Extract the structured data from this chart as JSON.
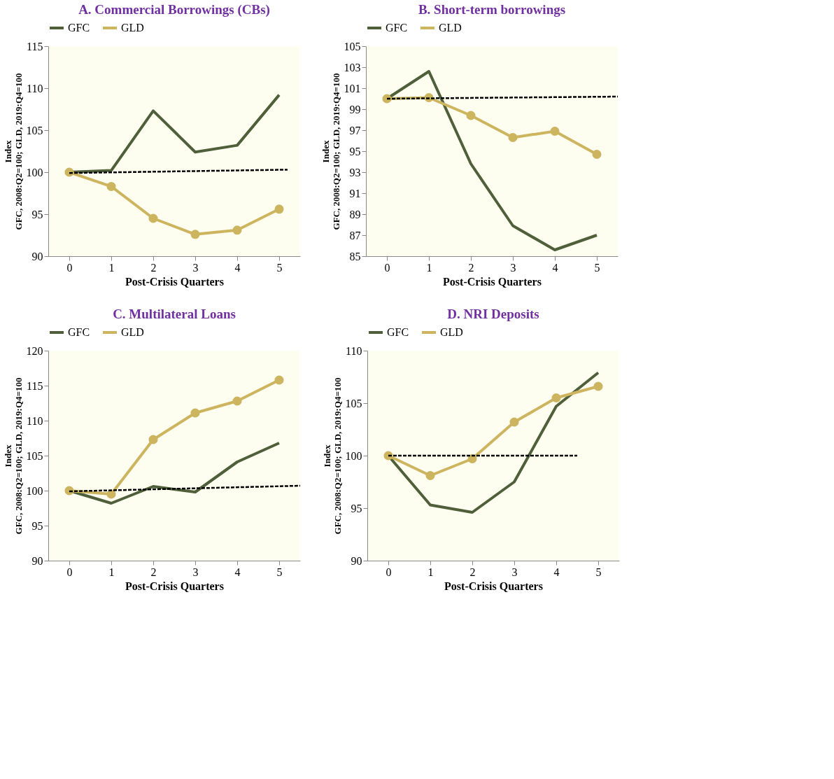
{
  "chart_data": [
    {
      "type": "line",
      "title": "A.  Commercial Borrowings (CBs)",
      "xlabel": "Post-Crisis Quarters",
      "ylabel": "Index\nGFC, 2008:Q2=100; GLD, 2019:Q4=100",
      "x": [
        0,
        1,
        2,
        3,
        4,
        5
      ],
      "xlim": [
        -0.5,
        5.5
      ],
      "xticks": [
        0,
        1,
        2,
        3,
        4,
        5
      ],
      "ylim": [
        90,
        115
      ],
      "yticks": [
        90,
        95,
        100,
        105,
        110,
        115
      ],
      "grid": false,
      "legend": "top",
      "marker": "none",
      "line_style": "solid",
      "series": [
        {
          "name": "GFC",
          "color": "#4f5f3a",
          "values": [
            100,
            100.2,
            107.3,
            102.4,
            103.2,
            109.2
          ]
        },
        {
          "name": "GLD",
          "color": "#cdb560",
          "marker": "circle",
          "values": [
            100,
            98.3,
            94.5,
            92.6,
            93.1,
            95.6
          ]
        },
        {
          "color": "#000000",
          "line_style": "dashed",
          "x": [
            0,
            5.2
          ],
          "values": [
            99.9,
            100.3
          ]
        }
      ]
    },
    {
      "type": "line",
      "title": "B.  Short-term borrowings",
      "xlabel": "Post-Crisis Quarters",
      "ylabel": "Index\nGFC, 2008:Q2=100; GLD, 2019:Q4=100",
      "x": [
        0,
        1,
        2,
        3,
        4,
        5
      ],
      "xlim": [
        -0.5,
        5.5
      ],
      "xticks": [
        0,
        1,
        2,
        3,
        4,
        5
      ],
      "ylim": [
        85,
        105
      ],
      "yticks": [
        85,
        87,
        89,
        91,
        93,
        95,
        97,
        99,
        101,
        103,
        105
      ],
      "grid": false,
      "legend": "top",
      "marker": "none",
      "line_style": "solid",
      "series": [
        {
          "name": "GFC",
          "color": "#4f5f3a",
          "values": [
            100,
            102.6,
            93.8,
            87.9,
            85.6,
            87.0
          ]
        },
        {
          "name": "GLD",
          "color": "#cdb560",
          "marker": "circle",
          "values": [
            100,
            100.1,
            98.4,
            96.3,
            96.9,
            94.7
          ]
        },
        {
          "color": "#000000",
          "line_style": "dashed",
          "x": [
            0,
            5.5
          ],
          "values": [
            100,
            100.2
          ]
        }
      ]
    },
    {
      "type": "line",
      "title": "C. Multilateral Loans",
      "xlabel": "Post-Crisis Quarters",
      "ylabel": "Index\nGFC, 2008:Q2=100; GLD, 2019:Q4=100",
      "x": [
        0,
        1,
        2,
        3,
        4,
        5
      ],
      "xlim": [
        -0.5,
        5.5
      ],
      "xticks": [
        0,
        1,
        2,
        3,
        4,
        5
      ],
      "ylim": [
        90,
        120
      ],
      "yticks": [
        90,
        95,
        100,
        105,
        110,
        115,
        120
      ],
      "grid": false,
      "legend": "top",
      "marker": "none",
      "line_style": "solid",
      "series": [
        {
          "name": "GFC",
          "color": "#4f5f3a",
          "values": [
            100,
            98.2,
            100.6,
            99.8,
            104.1,
            106.8
          ]
        },
        {
          "name": "GLD",
          "color": "#cdb560",
          "marker": "circle",
          "values": [
            100,
            99.5,
            107.3,
            111.1,
            112.8,
            115.8
          ]
        },
        {
          "color": "#000000",
          "line_style": "dashed",
          "x": [
            0,
            5.5
          ],
          "values": [
            99.9,
            100.7
          ]
        }
      ]
    },
    {
      "type": "line",
      "title": "D. NRI Deposits",
      "xlabel": "Post-Crisis Quarters",
      "ylabel": "Index\nGFC, 2008:Q2=100; GLD, 2019:Q4=100",
      "x": [
        0,
        1,
        2,
        3,
        4,
        5
      ],
      "xlim": [
        -0.5,
        5.5
      ],
      "xticks": [
        0,
        1,
        2,
        3,
        4,
        5
      ],
      "ylim": [
        90,
        110
      ],
      "yticks": [
        90,
        95,
        100,
        105,
        110
      ],
      "grid": false,
      "legend": "top",
      "marker": "none",
      "line_style": "solid",
      "series": [
        {
          "name": "GFC",
          "color": "#4f5f3a",
          "values": [
            100,
            95.3,
            94.6,
            97.5,
            104.7,
            107.9
          ]
        },
        {
          "name": "GLD",
          "color": "#cdb560",
          "marker": "circle",
          "values": [
            100,
            98.1,
            99.7,
            103.2,
            105.5,
            106.6
          ]
        },
        {
          "color": "#000000",
          "line_style": "dashed",
          "x": [
            0,
            4.5
          ],
          "values": [
            100,
            100
          ]
        }
      ]
    }
  ]
}
